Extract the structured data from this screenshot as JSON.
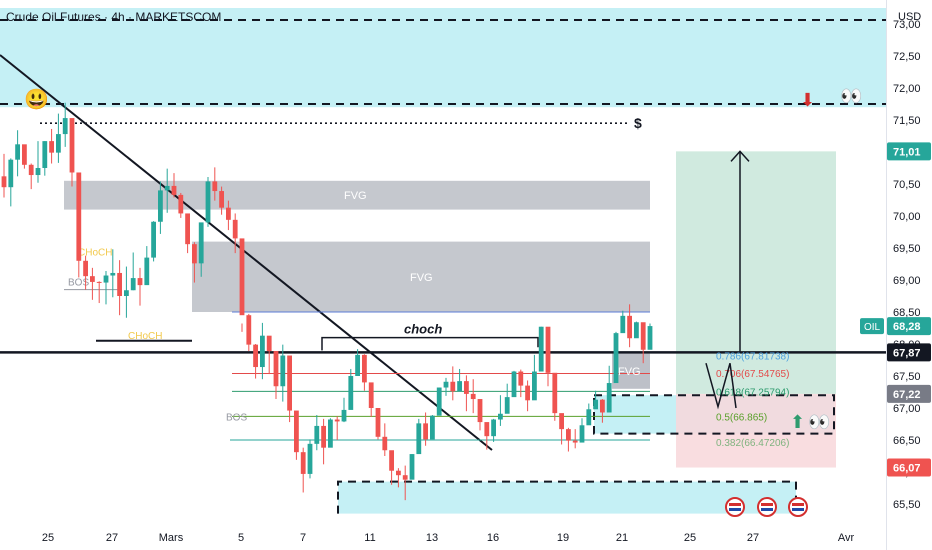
{
  "header": {
    "title": "Crude Oil Futures · 4h · MARKETSCOM",
    "currency": "USD"
  },
  "colors": {
    "bull": "#26a69a",
    "bear": "#ef5350",
    "zone": "#b2ebf2",
    "fvg": "#b2b5be",
    "target": "#c8e6d9",
    "stop": "#f8d7da",
    "choch": "#f2c94c"
  },
  "chart_data": {
    "type": "candlestick",
    "ylim": [
      65.25,
      73.25
    ],
    "price_ticks": [
      "73,00",
      "72,50",
      "72,00",
      "71,50",
      "71,00",
      "70,50",
      "70,00",
      "69,50",
      "69,00",
      "68,50",
      "68,00",
      "67,50",
      "67,00",
      "66,50",
      "66,00",
      "65,50"
    ],
    "date_ticks": [
      "25",
      "27",
      "Mars",
      "5",
      "7",
      "11",
      "13",
      "16",
      "19",
      "21",
      "25",
      "27",
      "Avr"
    ],
    "candles": [
      [
        70.62,
        70.45,
        70.97,
        70.29
      ],
      [
        70.45,
        70.88,
        70.9,
        70.15
      ],
      [
        70.88,
        71.12,
        71.34,
        70.62
      ],
      [
        71.12,
        70.8,
        71.07,
        70.74
      ],
      [
        70.8,
        70.64,
        70.82,
        70.42
      ],
      [
        70.64,
        70.75,
        71.17,
        70.52
      ],
      [
        70.75,
        71.17,
        71.17,
        70.63
      ],
      [
        71.17,
        70.99,
        71.36,
        70.82
      ],
      [
        70.99,
        71.28,
        71.6,
        70.83
      ],
      [
        71.28,
        71.53,
        71.77,
        71.08
      ],
      [
        71.53,
        70.68,
        71.34,
        70.46
      ],
      [
        70.68,
        69.3,
        69.62,
        69.04
      ],
      [
        69.3,
        69.06,
        69.38,
        68.85
      ],
      [
        69.06,
        68.97,
        69.19,
        68.69
      ],
      [
        68.97,
        68.96,
        68.98,
        68.64
      ],
      [
        68.96,
        69.07,
        69.14,
        68.62
      ],
      [
        69.07,
        69.11,
        69.48,
        68.73
      ],
      [
        69.11,
        68.75,
        69.31,
        68.45
      ],
      [
        68.75,
        68.84,
        69.21,
        68.41
      ],
      [
        68.84,
        69.03,
        69.43,
        68.84
      ],
      [
        69.03,
        68.92,
        69.19,
        68.6
      ],
      [
        68.92,
        69.35,
        69.53,
        69.18
      ],
      [
        69.35,
        69.91,
        69.92,
        69.29
      ],
      [
        69.91,
        70.4,
        70.54,
        69.72
      ],
      [
        70.4,
        70.47,
        70.74,
        70.05
      ],
      [
        70.47,
        70.33,
        70.67,
        70.29
      ],
      [
        70.33,
        70.04,
        70.36,
        69.97
      ],
      [
        70.04,
        69.56,
        69.79,
        69.42
      ],
      [
        69.56,
        69.26,
        69.59,
        68.96
      ],
      [
        69.26,
        69.9,
        69.87,
        69.05
      ],
      [
        69.9,
        70.54,
        70.61,
        69.83
      ],
      [
        70.54,
        70.39,
        70.76,
        70.24
      ],
      [
        70.39,
        70.13,
        70.46,
        70.02
      ],
      [
        70.13,
        69.94,
        70.24,
        69.78
      ],
      [
        69.94,
        69.65,
        70.04,
        69.42
      ],
      [
        69.65,
        68.45,
        68.32,
        68.19
      ],
      [
        68.45,
        67.99,
        68.47,
        67.89
      ],
      [
        67.99,
        67.64,
        68.0,
        67.46
      ],
      [
        67.64,
        68.13,
        68.33,
        67.45
      ],
      [
        68.13,
        67.89,
        68.07,
        67.53
      ],
      [
        67.89,
        67.34,
        67.86,
        67.14
      ],
      [
        67.34,
        67.82,
        67.99,
        67.1
      ],
      [
        67.82,
        66.96,
        67.33,
        66.78
      ],
      [
        66.96,
        66.31,
        66.86,
        66.19
      ],
      [
        66.31,
        65.97,
        66.38,
        65.68
      ],
      [
        65.97,
        66.44,
        66.51,
        65.9
      ],
      [
        66.44,
        66.72,
        66.89,
        66.34
      ],
      [
        66.72,
        66.38,
        66.83,
        66.12
      ],
      [
        66.38,
        66.82,
        66.84,
        66.64
      ],
      [
        66.82,
        66.79,
        66.87,
        66.5
      ],
      [
        66.79,
        66.97,
        67.16,
        66.78
      ],
      [
        66.97,
        67.5,
        67.61,
        67.25
      ],
      [
        67.5,
        67.83,
        67.92,
        67.56
      ],
      [
        67.83,
        67.4,
        67.84,
        67.27
      ],
      [
        67.4,
        67.0,
        67.26,
        66.86
      ],
      [
        67.0,
        66.55,
        66.91,
        66.51
      ],
      [
        66.55,
        66.34,
        66.76,
        66.25
      ],
      [
        66.34,
        66.02,
        66.29,
        65.8
      ],
      [
        66.02,
        65.95,
        66.06,
        65.76
      ],
      [
        65.95,
        65.88,
        66.1,
        65.56
      ],
      [
        65.88,
        66.28,
        66.28,
        65.99
      ],
      [
        66.28,
        66.76,
        66.83,
        66.57
      ],
      [
        66.76,
        66.51,
        66.93,
        66.41
      ],
      [
        66.51,
        66.88,
        66.89,
        66.72
      ],
      [
        66.88,
        67.32,
        67.32,
        67.01
      ],
      [
        67.32,
        67.41,
        67.47,
        67.19
      ],
      [
        67.41,
        67.26,
        67.65,
        67.12
      ],
      [
        67.26,
        67.42,
        67.61,
        67.28
      ],
      [
        67.42,
        67.22,
        67.51,
        66.95
      ],
      [
        67.22,
        67.14,
        67.45,
        66.92
      ],
      [
        67.14,
        66.78,
        66.92,
        66.65
      ],
      [
        66.78,
        66.56,
        66.72,
        66.35
      ],
      [
        66.56,
        66.82,
        66.83,
        66.47
      ],
      [
        66.82,
        66.91,
        67.2,
        66.72
      ],
      [
        66.91,
        67.17,
        67.38,
        67.0
      ],
      [
        67.17,
        67.57,
        67.58,
        67.4
      ],
      [
        67.57,
        67.35,
        67.6,
        67.17
      ],
      [
        67.35,
        67.12,
        67.43,
        66.95
      ],
      [
        67.12,
        67.57,
        67.83,
        67.41
      ],
      [
        67.57,
        68.27,
        68.27,
        68.11
      ],
      [
        68.27,
        67.55,
        67.89,
        67.34
      ],
      [
        67.55,
        66.92,
        67.33,
        66.8
      ],
      [
        66.92,
        66.67,
        66.77,
        66.43
      ],
      [
        66.67,
        66.49,
        66.69,
        66.32
      ],
      [
        66.49,
        66.46,
        66.67,
        66.37
      ],
      [
        66.46,
        66.73,
        66.84,
        66.55
      ],
      [
        66.73,
        66.98,
        67.07,
        66.91
      ],
      [
        66.98,
        67.13,
        67.27,
        66.99
      ],
      [
        67.13,
        66.93,
        67.14,
        66.77
      ],
      [
        66.93,
        67.39,
        67.66,
        67.25
      ],
      [
        67.39,
        68.17,
        68.19,
        67.96
      ],
      [
        68.17,
        68.44,
        68.52,
        68.3
      ],
      [
        68.44,
        68.09,
        68.62,
        67.95
      ],
      [
        68.09,
        68.34,
        68.35,
        68.14
      ],
      [
        68.34,
        67.91,
        68.07,
        67.7
      ],
      [
        67.91,
        68.28,
        68.32,
        68.07
      ]
    ],
    "zones": [
      {
        "type": "supply",
        "from": 71.7,
        "to": 73.25
      },
      {
        "type": "fvg",
        "from": 70.1,
        "to": 70.55,
        "label": "FVG"
      },
      {
        "type": "fvg",
        "from": 68.5,
        "to": 69.6,
        "label": "FVG"
      },
      {
        "type": "fvg",
        "from": 67.3,
        "to": 67.85,
        "label": "FVG"
      },
      {
        "type": "demand",
        "from": 66.6,
        "to": 67.2
      },
      {
        "type": "demand",
        "from": 65.35,
        "to": 65.85
      }
    ],
    "levels": {
      "liquidity": 71.45,
      "resistance": 71.75,
      "support": 67.87,
      "choch": 68.05,
      "swing_high": 68.5,
      "swing_low": 66.5
    },
    "labels": {
      "dollar": "$",
      "choch": "choch",
      "choch_small": "CHoCH",
      "bos": "BOS",
      "fvg": "FVG",
      "symbol": "OIL",
      "smile": "😃",
      "eyes": "👀",
      "down_arrow": "⬇",
      "up_arrow": "⬆"
    },
    "price_labels": [
      {
        "value": "71,01",
        "color": "#26a69a"
      },
      {
        "value": "68,28",
        "color": "#26a69a"
      },
      {
        "value": "67,87",
        "color": "#131722"
      },
      {
        "value": "67,22",
        "color": "#787b86"
      },
      {
        "value": "66,07",
        "color": "#ef5350"
      }
    ],
    "position": {
      "entry": 67.22,
      "target": 71.01,
      "stop": 66.07
    },
    "fib": [
      {
        "label": "0.786(67.81738)",
        "value": 67.81738,
        "color": "#4fa3e0"
      },
      {
        "label": "0.706(67.54765)",
        "value": 67.54765,
        "color": "#e34a4a"
      },
      {
        "label": "0.618(67.25794)",
        "value": 67.25794,
        "color": "#2e9b6e"
      },
      {
        "label": "0.5(66.865)",
        "value": 66.865,
        "color": "#5aa02c"
      },
      {
        "label": "0.382(66.47206)",
        "value": 66.47206,
        "color": "#7fb37f"
      }
    ]
  }
}
